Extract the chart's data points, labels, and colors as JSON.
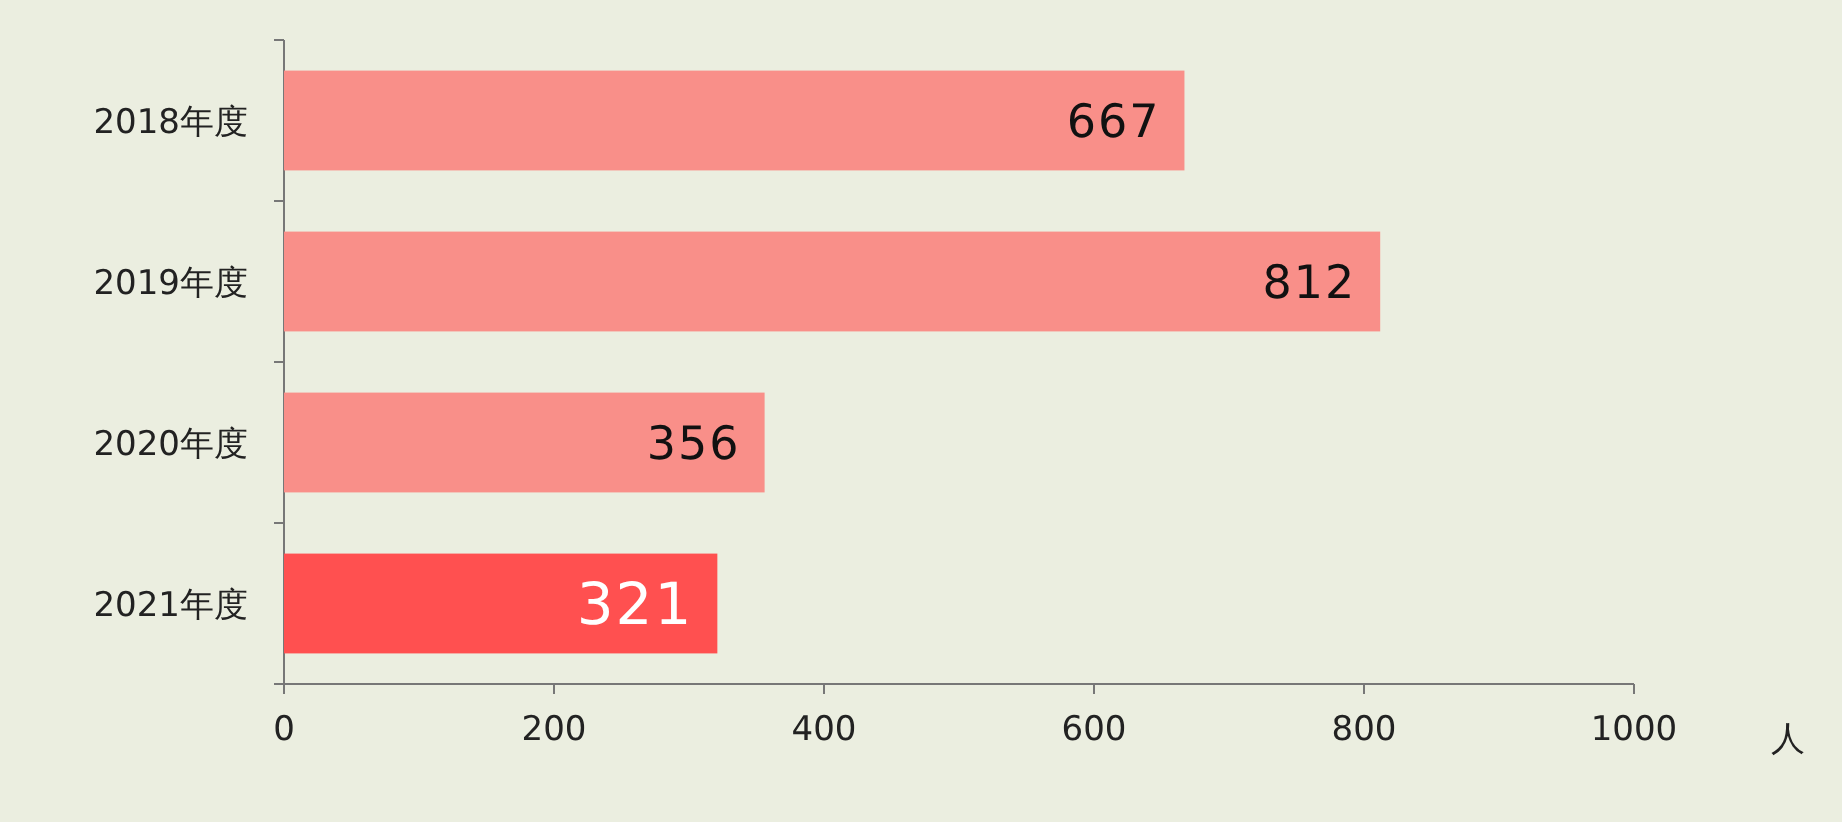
{
  "chart_data": {
    "type": "bar",
    "orientation": "horizontal",
    "categories": [
      "2018年度",
      "2019年度",
      "2020年度",
      "2021年度"
    ],
    "values": [
      667,
      812,
      356,
      321
    ],
    "colors": [
      "#f98f89",
      "#f98f89",
      "#f98f89",
      "#ff5050"
    ],
    "xlim": [
      0,
      1000
    ],
    "xticks": [
      0,
      200,
      400,
      600,
      800,
      1000
    ],
    "xlabel": "人",
    "data_labels": true
  }
}
